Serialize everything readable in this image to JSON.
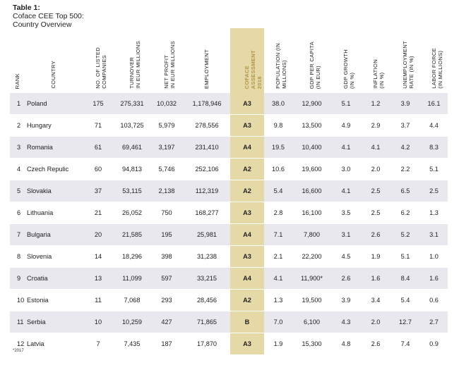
{
  "title": {
    "line1": "Table 1:",
    "line2": "Coface CEE Top 500:",
    "line3": "Country Overview"
  },
  "headers": [
    "RANK",
    "COUNTRY",
    "NO. OF LISTED\nCOMPANIES",
    "TURNOVER\nIN EUR MILLIONS",
    "NET PROFIT\nIN EUR MILLIONS",
    "EMPLOYMENT",
    "COFACE\nASSESSMENT\n2018",
    "POPULATION (IN\nMILLIONS)",
    "GDP PER CAPITA\n(IN EUR)",
    "GDP GROWTH\n(IN %)",
    "INFLATION\n(IN %)",
    "UNEMPLOYMENT\nRATE (IN %)",
    "LABOR FORCE\n(IN MILLIONS)"
  ],
  "rows": [
    [
      "1",
      "Poland",
      "175",
      "275,331",
      "10,032",
      "1,178,946",
      "A3",
      "38.0",
      "12,900",
      "5.1",
      "1.2",
      "3.9",
      "16.1"
    ],
    [
      "2",
      "Hungary",
      "71",
      "103,725",
      "5,979",
      "278,556",
      "A3",
      "9.8",
      "13,500",
      "4.9",
      "2.9",
      "3.7",
      "4.4"
    ],
    [
      "3",
      "Romania",
      "61",
      "69,461",
      "3,197",
      "231,410",
      "A4",
      "19.5",
      "10,400",
      "4.1",
      "4.1",
      "4.2",
      "8.3"
    ],
    [
      "4",
      "Czech Repulic",
      "60",
      "94,813",
      "5,746",
      "252,106",
      "A2",
      "10.6",
      "19,600",
      "3.0",
      "2.0",
      "2.2",
      "5.1"
    ],
    [
      "5",
      "Slovakia",
      "37",
      "53,115",
      "2,138",
      "112,319",
      "A2",
      "5.4",
      "16,600",
      "4.1",
      "2.5",
      "6.5",
      "2.5"
    ],
    [
      "6",
      "Lithuania",
      "21",
      "26,052",
      "750",
      "168,277",
      "A3",
      "2.8",
      "16,100",
      "3.5",
      "2.5",
      "6.2",
      "1.3"
    ],
    [
      "7",
      "Bulgaria",
      "20",
      "21,585",
      "195",
      "25,981",
      "A4",
      "7.1",
      "7,800",
      "3.1",
      "2.6",
      "5.2",
      "3.1"
    ],
    [
      "8",
      "Slovenia",
      "14",
      "18,296",
      "398",
      "31,238",
      "A3",
      "2.1",
      "22,200",
      "4.5",
      "1.9",
      "5.1",
      "1.0"
    ],
    [
      "9",
      "Croatia",
      "13",
      "11,099",
      "597",
      "33,215",
      "A4",
      "4.1",
      "11,900*",
      "2.6",
      "1.6",
      "8.4",
      "1.6"
    ],
    [
      "10",
      "Estonia",
      "11",
      "7,068",
      "293",
      "28,456",
      "A2",
      "1.3",
      "19,500",
      "3.9",
      "3.4",
      "5.4",
      "0.6"
    ],
    [
      "11",
      "Serbia",
      "10",
      "10,259",
      "427",
      "71,865",
      "B",
      "7.0",
      "6,100",
      "4.3",
      "2.0",
      "12.7",
      "2.7"
    ],
    [
      "12",
      "Latvia",
      "7",
      "7,435",
      "187",
      "17,870",
      "A3",
      "1.9",
      "15,300",
      "4.8",
      "2.6",
      "7.4",
      "0.9"
    ]
  ],
  "footnote": "*2017",
  "colors": {
    "stripe": "#e9e8ef",
    "coface_bg": "#e6d9a8",
    "coface_header_text": "#b0954a"
  }
}
